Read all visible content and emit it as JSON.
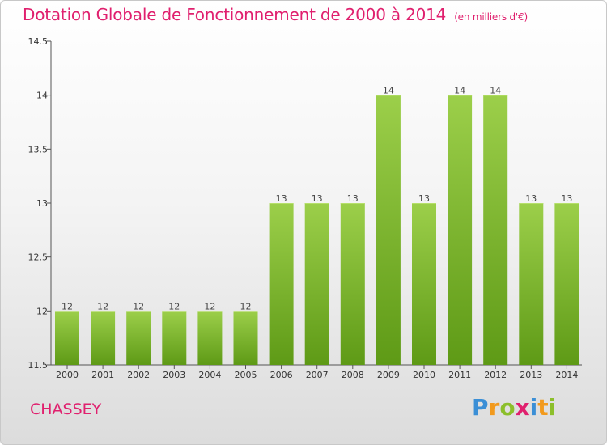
{
  "header": {
    "title": "Dotation Globale de Fonctionnement de 2000 à 2014",
    "unit": "(en milliers d'€)"
  },
  "footer": {
    "commune": "CHASSEY",
    "logo_letters": [
      "P",
      "r",
      "o",
      "x",
      "i",
      "t",
      "i"
    ],
    "logo_colors": [
      "#3b8fd6",
      "#f29a1d",
      "#8cbf2b",
      "#e0206e",
      "#3b8fd6",
      "#f29a1d",
      "#8cbf2b"
    ]
  },
  "chart_data": {
    "type": "bar",
    "title": "Dotation Globale de Fonctionnement de 2000 à 2014",
    "xlabel": "",
    "ylabel": "",
    "categories": [
      "2000",
      "2001",
      "2002",
      "2003",
      "2004",
      "2005",
      "2006",
      "2007",
      "2008",
      "2009",
      "2010",
      "2011",
      "2012",
      "2013",
      "2014"
    ],
    "values": [
      12,
      12,
      12,
      12,
      12,
      12,
      13,
      13,
      13,
      14,
      13,
      14,
      14,
      13,
      13
    ],
    "value_labels": [
      "12",
      "12",
      "12",
      "12",
      "12",
      "12",
      "13",
      "13",
      "13",
      "14",
      "13",
      "14",
      "14",
      "13",
      "13"
    ],
    "ylim": [
      11.5,
      14.5
    ],
    "yticks": [
      11.5,
      12,
      12.5,
      13,
      13.5,
      14,
      14.5
    ],
    "ytick_labels": [
      "11.5",
      "12",
      "12.5",
      "13",
      "13.5",
      "14",
      "14.5"
    ],
    "grid": false,
    "bar_color_top": "#9ccf4a",
    "bar_color_bottom": "#5e9a16"
  }
}
